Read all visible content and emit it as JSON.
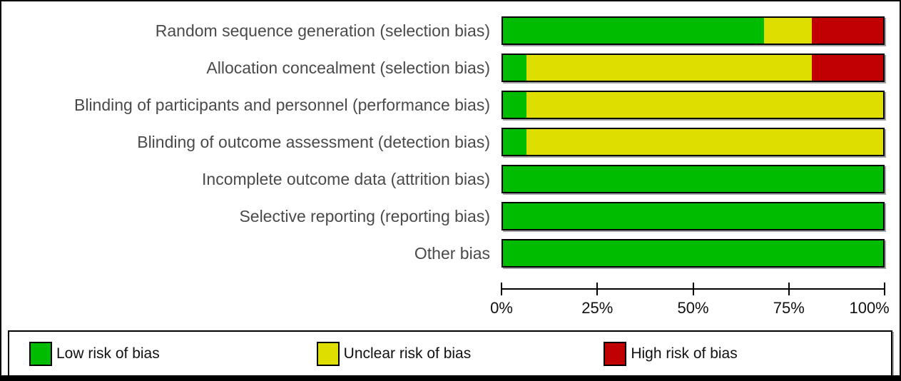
{
  "chart_data": {
    "type": "bar",
    "orientation": "horizontal",
    "stacked": true,
    "unit": "percent",
    "categories": [
      "Random sequence generation (selection bias)",
      "Allocation concealment (selection bias)",
      "Blinding of participants and personnel (performance bias)",
      "Blinding of outcome assessment (detection bias)",
      "Incomplete outcome data (attrition bias)",
      "Selective reporting (reporting bias)",
      "Other bias"
    ],
    "series": [
      {
        "key": "low",
        "name": "Low risk of bias",
        "color": "#00bc00",
        "values": [
          68.75,
          6.25,
          6.25,
          6.25,
          100,
          100,
          100
        ]
      },
      {
        "key": "unclear",
        "name": "Unclear risk of bias",
        "color": "#dede00",
        "values": [
          12.5,
          75,
          93.75,
          93.75,
          0,
          0,
          0
        ]
      },
      {
        "key": "high",
        "name": "High risk of bias",
        "color": "#c00000",
        "values": [
          18.75,
          18.75,
          0,
          0,
          0,
          0,
          0
        ]
      }
    ],
    "xlim": [
      0,
      100
    ],
    "x_ticks": [
      "0%",
      "25%",
      "50%",
      "75%",
      "100%"
    ],
    "grid": false,
    "legend_position": "bottom"
  },
  "legend": {
    "items": [
      {
        "label": "Low risk of bias",
        "color": "#00bc00"
      },
      {
        "label": "Unclear risk of bias",
        "color": "#dede00"
      },
      {
        "label": "High risk of bias",
        "color": "#c00000"
      }
    ]
  }
}
